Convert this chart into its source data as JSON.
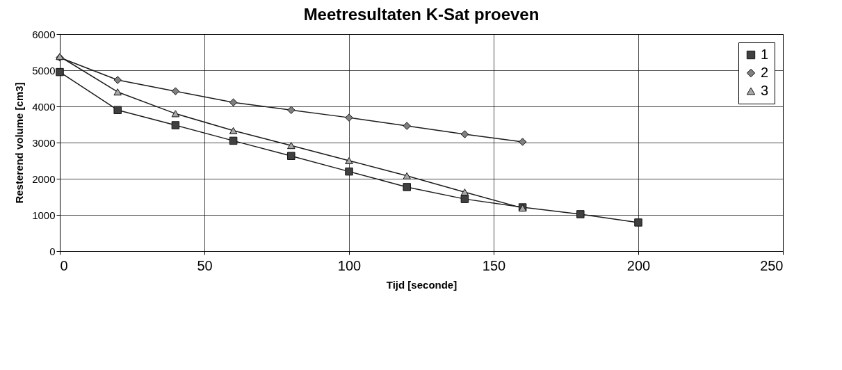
{
  "chart_data": {
    "type": "line",
    "title": "Meetresultaten K-Sat proeven",
    "xlabel": "Tijd [seconde]",
    "ylabel": "Resterend volume [cm3]",
    "xlim": [
      0,
      250
    ],
    "xticks": [
      0,
      50,
      100,
      150,
      200,
      250
    ],
    "ylim": [
      0,
      6000
    ],
    "yticks": [
      0,
      1000,
      2000,
      3000,
      4000,
      5000,
      6000
    ],
    "grid": true,
    "legend": "top right",
    "series": [
      {
        "name": "1",
        "color": "#404040",
        "marker": "square",
        "x": [
          0,
          20,
          40,
          60,
          80,
          100,
          120,
          140,
          160,
          180,
          200
        ],
        "values": [
          4950,
          3900,
          3480,
          3050,
          2630,
          2200,
          1770,
          1440,
          1210,
          1020,
          790
        ]
      },
      {
        "name": "2",
        "color": "#808080",
        "marker": "diamond",
        "x": [
          0,
          20,
          40,
          60,
          80,
          100,
          120,
          140,
          160
        ],
        "values": [
          5350,
          4730,
          4420,
          4110,
          3900,
          3690,
          3460,
          3230,
          3020
        ]
      },
      {
        "name": "3",
        "color": "#a8a8a8",
        "marker": "triangle",
        "x": [
          0,
          20,
          40,
          60,
          80,
          100,
          120,
          140,
          160
        ],
        "values": [
          5380,
          4400,
          3800,
          3330,
          2920,
          2500,
          2080,
          1630,
          1190
        ]
      }
    ]
  }
}
